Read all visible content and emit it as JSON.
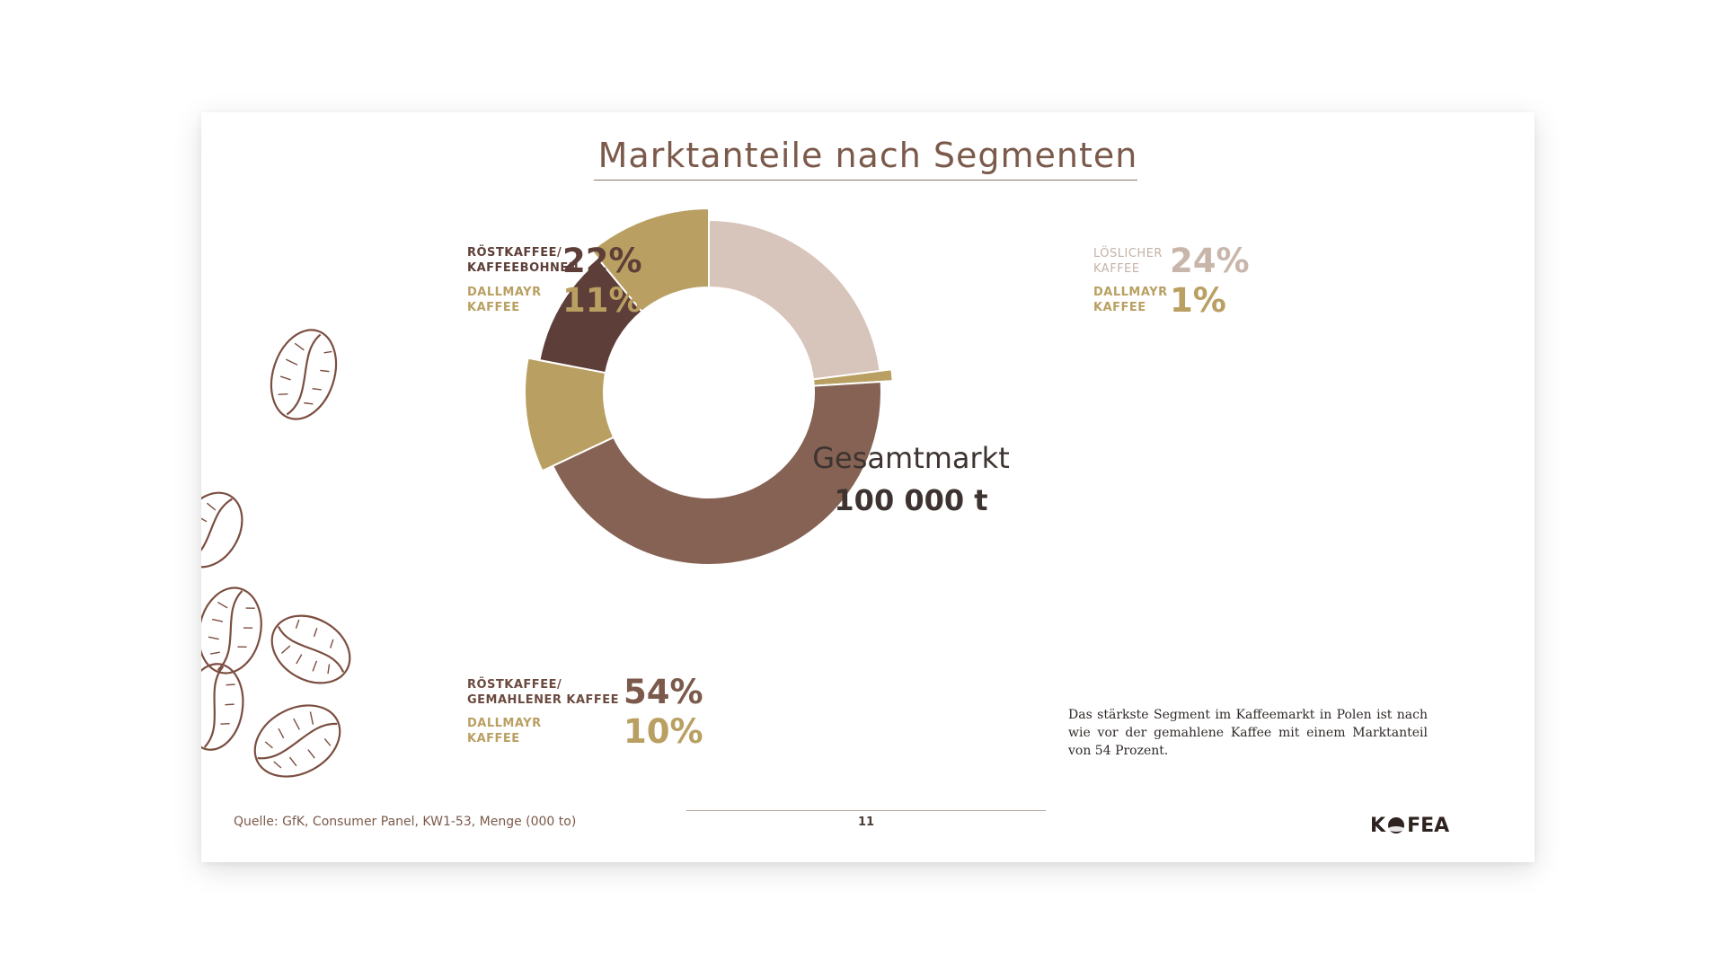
{
  "title": "Marktanteile nach Segmenten",
  "center": {
    "title": "Gesamtmarkt",
    "value": "100 000 t"
  },
  "chart_data": {
    "type": "pie",
    "total_label": "Gesamtmarkt",
    "total_value": "100 000 t",
    "segments": [
      {
        "name": "LÖSLICHER KAFFEE",
        "share": 24,
        "color": "#d7c4ba",
        "dallmayr_share": 1,
        "dallmayr_color": "#b9a062"
      },
      {
        "name": "RÖSTKAFFEE/ GEMAHLENER KAFFEE",
        "share": 54,
        "color": "#856253",
        "dallmayr_share": 10,
        "dallmayr_color": "#b9a062"
      },
      {
        "name": "RÖSTKAFFEE/ KAFFEEBOHNEN",
        "share": 22,
        "color": "#5e3e38",
        "dallmayr_share": 11,
        "dallmayr_color": "#b9a062"
      }
    ]
  },
  "labels": {
    "loeslich": {
      "line1": "LÖSLICHER",
      "line2": "KAFFEE",
      "pct": "24%",
      "d_line1": "DALLMAYR",
      "d_line2": "KAFFEE",
      "d_pct": "1%"
    },
    "bohnen": {
      "line1": "RÖSTKAFFEE/",
      "line2": "KAFFEEBOHNEN",
      "pct": "22%",
      "d_line1": "DALLMAYR",
      "d_line2": "KAFFEE",
      "d_pct": "11%"
    },
    "gemahlen": {
      "line1": "RÖSTKAFFEE/",
      "line2": "GEMAHLENER KAFFEE",
      "pct": "54%",
      "d_line1": "DALLMAYR",
      "d_line2": "KAFFEE",
      "d_pct": "10%"
    }
  },
  "colors": {
    "title": "#7b5a4b",
    "loeslich": "#d7c4ba",
    "gemahlen": "#856253",
    "bohnen": "#5e3e38",
    "dallmayr": "#b9a062",
    "bean_line": "#7b4e40"
  },
  "note": "Das stärkste Segment im Kaffeemarkt in Polen ist nach wie vor der gemahlene Kaffee mit einem Marktanteil von 54 Prozent.",
  "footer": {
    "source": "Quelle: GfK, Consumer Panel, KW1-53, Menge (000 to)",
    "page": "11",
    "logo_left": "K",
    "logo_right": "FEA"
  }
}
